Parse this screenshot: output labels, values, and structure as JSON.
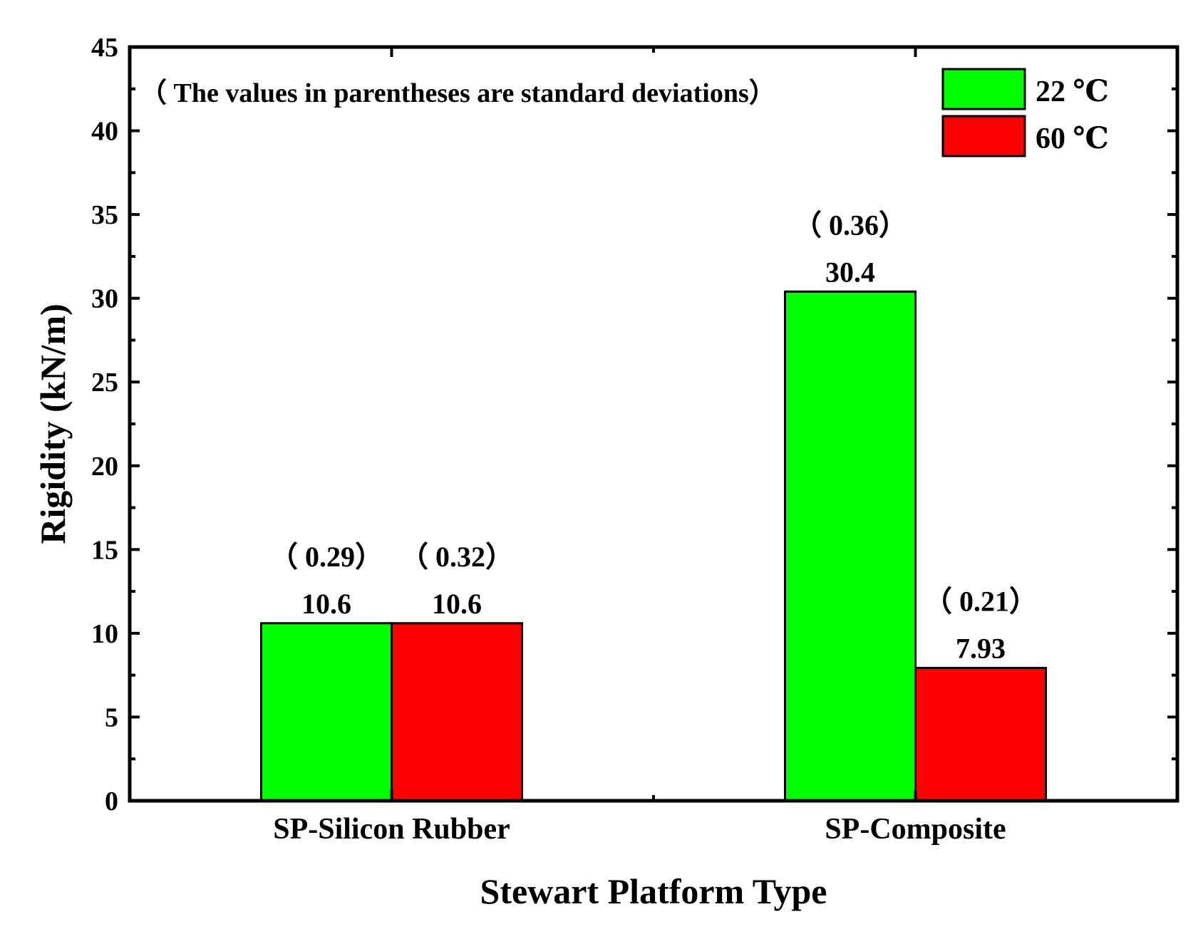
{
  "chart_data": {
    "type": "bar",
    "xlabel": "Stewart Platform Type",
    "ylabel": "Rigidity (kN/m)",
    "categories": [
      "SP-Silicon Rubber",
      "SP-Composite"
    ],
    "ylim": [
      0,
      45
    ],
    "yticks": [
      0,
      5,
      10,
      15,
      20,
      25,
      30,
      35,
      40,
      45
    ],
    "series": [
      {
        "name": "22 ℃",
        "color": "#00ff00",
        "values": [
          10.6,
          30.4
        ],
        "value_labels": [
          "10.6",
          "30.4"
        ],
        "sd_labels": [
          "（ 0.29）",
          "（ 0.36）"
        ]
      },
      {
        "name": "60 ℃",
        "color": "#ff0000",
        "values": [
          10.6,
          7.93
        ],
        "value_labels": [
          "10.6",
          "7.93"
        ],
        "sd_labels": [
          "（ 0.32）",
          "（ 0.21）"
        ]
      }
    ],
    "annotation": "（ The values in parentheses are standard deviations）",
    "legend_position": "top-right",
    "grid": false
  }
}
